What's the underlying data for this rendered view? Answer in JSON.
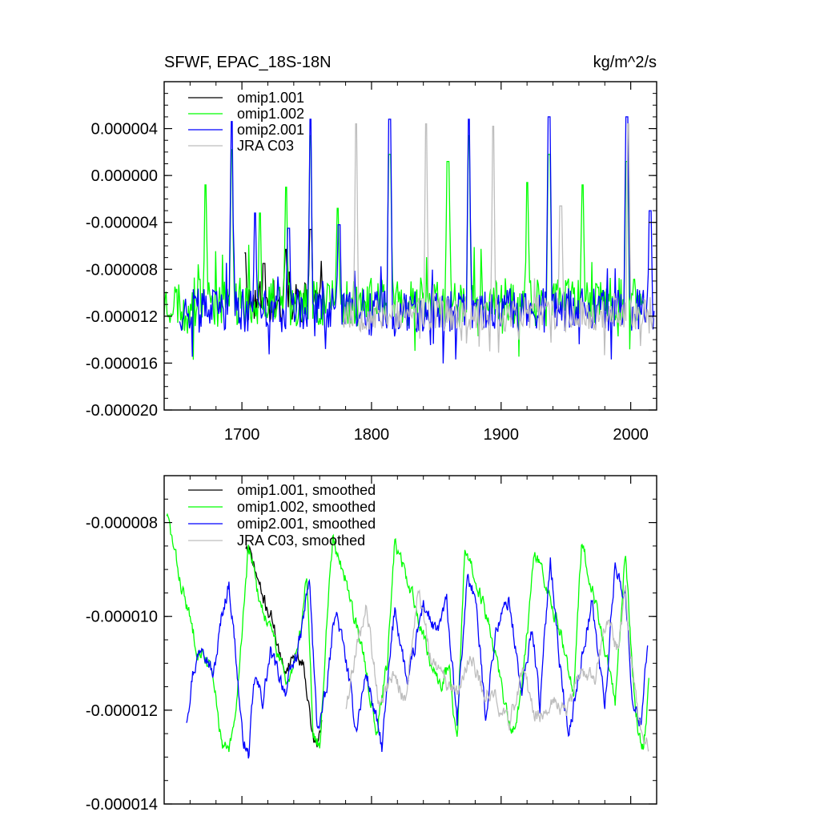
{
  "chart_data": [
    {
      "type": "line",
      "title": "SFWF, EPAC_18S-18N",
      "units": "kg/m^2/s",
      "xlim": [
        1640,
        2020
      ],
      "ylim": [
        -2e-05,
        8e-06
      ],
      "yticks": [
        -2e-05,
        -1.6e-05,
        -1.2e-05,
        -8e-06,
        -4e-06,
        0.0,
        4e-06
      ],
      "ytick_labels": [
        "-0.000020",
        "-0.000016",
        "-0.000012",
        "-0.000008",
        "-0.000004",
        "0.000000",
        "0.000004"
      ],
      "xticks": [
        1700,
        1800,
        1900,
        2000
      ],
      "xtick_labels": [
        "1700",
        "1800",
        "1900",
        "2000"
      ],
      "legend": [
        "omip1.001",
        "omip1.002",
        "omip2.001",
        "JRA C03"
      ],
      "series": [
        {
          "name": "omip1.001",
          "color": "#000000",
          "start": 1702,
          "end": 1763,
          "seed": 11,
          "base": -1.08e-05,
          "noise": 1.9e-06,
          "spikes": [
            [
              1702,
              -6.6e-06
            ],
            [
              1717,
              -7.5e-06
            ],
            [
              1734,
              -6.3e-06
            ],
            [
              1753,
              -4.6e-06
            ]
          ]
        },
        {
          "name": "omip1.002",
          "color": "#00ff00",
          "start": 1640,
          "end": 2010,
          "seed": 23,
          "base": -1.08e-05,
          "noise": 2.1e-06,
          "spikes": [
            [
              1672,
              -8e-07
            ],
            [
              1692,
              2.2e-06
            ],
            [
              1714,
              -3.2e-06
            ],
            [
              1734,
              -1e-06
            ],
            [
              1753,
              3.4e-06
            ],
            [
              1774,
              -2.8e-06
            ],
            [
              1814,
              1.8e-06
            ],
            [
              1859,
              1.2e-06
            ],
            [
              1875,
              3.4e-06
            ],
            [
              1920,
              -6e-07
            ],
            [
              1937,
              1.8e-06
            ],
            [
              1963,
              -8e-07
            ],
            [
              1997,
              1.2e-06
            ]
          ]
        },
        {
          "name": "omip2.001",
          "color": "#0000ff",
          "start": 1652,
          "end": 2018,
          "seed": 37,
          "base": -1.15e-05,
          "noise": 1.9e-06,
          "spikes": [
            [
              1692,
              4.6e-06
            ],
            [
              1710,
              -3.2e-06
            ],
            [
              1736,
              -4.5e-06
            ],
            [
              1753,
              4.8e-06
            ],
            [
              1775,
              -4.2e-06
            ],
            [
              1814,
              4.8e-06
            ],
            [
              1875,
              4.8e-06
            ],
            [
              1937,
              5e-06
            ],
            [
              1997,
              5e-06
            ],
            [
              2015,
              -3e-06
            ]
          ]
        },
        {
          "name": "JRA C03",
          "color": "#bebebe",
          "start": 1778,
          "end": 2018,
          "seed": 53,
          "base": -1.18e-05,
          "noise": 1.5e-06,
          "spikes": [
            [
              1788,
              4.4e-06
            ],
            [
              1842,
              4.4e-06
            ],
            [
              1894,
              4.2e-06
            ],
            [
              1946,
              -2.6e-06
            ],
            [
              1998,
              4.4e-06
            ]
          ]
        }
      ]
    },
    {
      "type": "line",
      "xlim": [
        1640,
        2020
      ],
      "ylim": [
        -1.4e-05,
        -7e-06
      ],
      "yticks": [
        -1.4e-05,
        -1.2e-05,
        -1e-05,
        -8e-06
      ],
      "ytick_labels": [
        "-0.000014",
        "-0.000012",
        "-0.000010",
        "-0.000008"
      ],
      "xticks": [
        1700,
        1800,
        1900,
        2000
      ],
      "xtick_labels": [],
      "legend": [
        "omip1.001, smoothed",
        "omip1.002, smoothed",
        "omip2.001, smoothed",
        "JRA C03, smoothed"
      ],
      "series": [
        {
          "name": "omip1.001, smoothed",
          "color": "#000000",
          "start": 1703,
          "end": 1762,
          "seed": 71,
          "noise": 2.8e-07,
          "knots": [
            [
              1703,
              -8.5e-06
            ],
            [
              1708,
              -8.8e-06
            ],
            [
              1716,
              -9.6e-06
            ],
            [
              1724,
              -1.01e-05
            ],
            [
              1732,
              -1.12e-05
            ],
            [
              1740,
              -1.08e-05
            ],
            [
              1748,
              -1.1e-05
            ],
            [
              1754,
              -1.25e-05
            ],
            [
              1758,
              -1.28e-05
            ],
            [
              1762,
              -1.22e-05
            ]
          ]
        },
        {
          "name": "omip1.002, smoothed",
          "color": "#00ff00",
          "start": 1642,
          "end": 2014,
          "seed": 83,
          "noise": 3e-07,
          "knots": [
            [
              1642,
              -7.8e-06
            ],
            [
              1652,
              -9.2e-06
            ],
            [
              1665,
              -1.06e-05
            ],
            [
              1675,
              -1.1e-05
            ],
            [
              1680,
              -1.18e-05
            ],
            [
              1685,
              -1.28e-05
            ],
            [
              1690,
              -1.29e-05
            ],
            [
              1695,
              -1.22e-05
            ],
            [
              1700,
              -1.03e-05
            ],
            [
              1705,
              -8.5e-06
            ],
            [
              1712,
              -9.5e-06
            ],
            [
              1722,
              -1.03e-05
            ],
            [
              1735,
              -1.14e-05
            ],
            [
              1745,
              -1.04e-05
            ],
            [
              1750,
              -9e-06
            ],
            [
              1755,
              -1.25e-05
            ],
            [
              1760,
              -1.28e-05
            ],
            [
              1765,
              -1.03e-05
            ],
            [
              1770,
              -8.3e-06
            ],
            [
              1778,
              -9e-06
            ],
            [
              1792,
              -1.06e-05
            ],
            [
              1804,
              -1.24e-05
            ],
            [
              1812,
              -1.1e-05
            ],
            [
              1818,
              -8.4e-06
            ],
            [
              1826,
              -9.1e-06
            ],
            [
              1838,
              -1.02e-05
            ],
            [
              1852,
              -1.15e-05
            ],
            [
              1860,
              -1.11e-05
            ],
            [
              1866,
              -1.28e-05
            ],
            [
              1872,
              -8.5e-06
            ],
            [
              1880,
              -9.2e-06
            ],
            [
              1892,
              -1.03e-05
            ],
            [
              1908,
              -1.25e-05
            ],
            [
              1916,
              -1.16e-05
            ],
            [
              1926,
              -8.6e-06
            ],
            [
              1934,
              -9.4e-06
            ],
            [
              1946,
              -1.03e-05
            ],
            [
              1956,
              -1.17e-05
            ],
            [
              1962,
              -8.5e-06
            ],
            [
              1970,
              -9.3e-06
            ],
            [
              1978,
              -1.04e-05
            ],
            [
              1988,
              -1.18e-05
            ],
            [
              1996,
              -8.6e-06
            ],
            [
              2001,
              -1.1e-05
            ],
            [
              2006,
              -1.26e-05
            ],
            [
              2010,
              -1.28e-05
            ],
            [
              2014,
              -1.15e-05
            ]
          ]
        },
        {
          "name": "omip2.001, smoothed",
          "color": "#0000ff",
          "start": 1657,
          "end": 2013,
          "seed": 97,
          "noise": 3.2e-07,
          "knots": [
            [
              1657,
              -1.22e-05
            ],
            [
              1662,
              -1.12e-05
            ],
            [
              1670,
              -1.05e-05
            ],
            [
              1678,
              -1.13e-05
            ],
            [
              1685,
              -9.9e-06
            ],
            [
              1690,
              -9.3e-06
            ],
            [
              1695,
              -1.07e-05
            ],
            [
              1700,
              -1.25e-05
            ],
            [
              1705,
              -1.3e-05
            ],
            [
              1710,
              -1.13e-05
            ],
            [
              1716,
              -1.18e-05
            ],
            [
              1722,
              -1.08e-05
            ],
            [
              1734,
              -1.16e-05
            ],
            [
              1745,
              -1.05e-05
            ],
            [
              1752,
              -9.2e-06
            ],
            [
              1758,
              -1.24e-05
            ],
            [
              1765,
              -1.17e-05
            ],
            [
              1772,
              -9.8e-06
            ],
            [
              1780,
              -1.09e-05
            ],
            [
              1788,
              -1.24e-05
            ],
            [
              1796,
              -1.12e-05
            ],
            [
              1808,
              -1.28e-05
            ],
            [
              1818,
              -9.8e-06
            ],
            [
              1828,
              -1.15e-05
            ],
            [
              1840,
              -9.7e-06
            ],
            [
              1850,
              -1.04e-05
            ],
            [
              1858,
              -9.7e-06
            ],
            [
              1866,
              -1.23e-05
            ],
            [
              1874,
              -9.1e-06
            ],
            [
              1880,
              -9.6e-06
            ],
            [
              1888,
              -1.21e-05
            ],
            [
              1896,
              -1.03e-05
            ],
            [
              1906,
              -9.6e-06
            ],
            [
              1916,
              -1.17e-05
            ],
            [
              1924,
              -1.02e-05
            ],
            [
              1930,
              -1.19e-05
            ],
            [
              1938,
              -8.7e-06
            ],
            [
              1946,
              -1.12e-05
            ],
            [
              1952,
              -1.26e-05
            ],
            [
              1962,
              -1.09e-05
            ],
            [
              1970,
              -9.7e-06
            ],
            [
              1980,
              -1.19e-05
            ],
            [
              1988,
              -8.9e-06
            ],
            [
              1996,
              -9.6e-06
            ],
            [
              2002,
              -1.2e-05
            ],
            [
              2008,
              -1.22e-05
            ],
            [
              2013,
              -1.05e-05
            ]
          ]
        },
        {
          "name": "JRA C03, smoothed",
          "color": "#bebebe",
          "start": 1780,
          "end": 2014,
          "seed": 109,
          "noise": 3.2e-07,
          "knots": [
            [
              1780,
              -1.19e-05
            ],
            [
              1788,
              -1.08e-05
            ],
            [
              1796,
              -9.8e-06
            ],
            [
              1806,
              -1.19e-05
            ],
            [
              1816,
              -1.12e-05
            ],
            [
              1826,
              -1.18e-05
            ],
            [
              1836,
              -9.4e-06
            ],
            [
              1846,
              -1.1e-05
            ],
            [
              1856,
              -1.13e-05
            ],
            [
              1866,
              -1.17e-05
            ],
            [
              1876,
              -1.08e-05
            ],
            [
              1886,
              -1.16e-05
            ],
            [
              1896,
              -1.17e-05
            ],
            [
              1906,
              -1.24e-05
            ],
            [
              1916,
              -1.12e-05
            ],
            [
              1928,
              -1.22e-05
            ],
            [
              1940,
              -1.17e-05
            ],
            [
              1950,
              -1.21e-05
            ],
            [
              1962,
              -1.11e-05
            ],
            [
              1972,
              -1.14e-05
            ],
            [
              1982,
              -1.01e-05
            ],
            [
              1990,
              -1.07e-05
            ],
            [
              1996,
              -9.5e-06
            ],
            [
              2000,
              -1.08e-05
            ],
            [
              2006,
              -1.22e-05
            ],
            [
              2014,
              -1.28e-05
            ]
          ]
        }
      ]
    }
  ]
}
